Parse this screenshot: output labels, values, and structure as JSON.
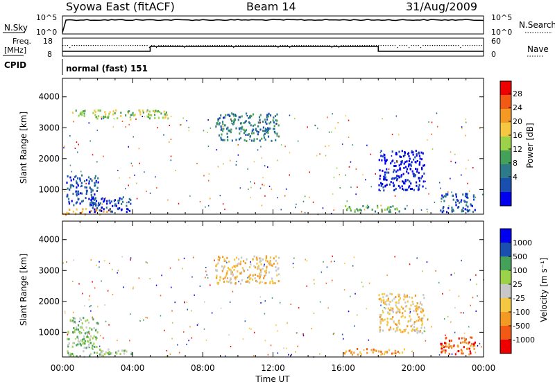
{
  "header": {
    "station": "Syowa East (fitACF)",
    "beam": "Beam 14",
    "date": "31/Aug/2009"
  },
  "summary_panels": {
    "nsky_label": "N.Sky",
    "nsky_ticks": [
      "10^5",
      "10^0"
    ],
    "nsearch_label": "N.Search",
    "nsearch_ticks": [
      "10^5",
      "10^0"
    ],
    "freq_label": "Freq.",
    "freq_unit": "[MHz]",
    "freq_ticks": [
      "18",
      "8"
    ],
    "nave_label": "Nave",
    "nave_ticks": [
      "60",
      "0"
    ],
    "cpid_label": "CPID",
    "cpid_value": "normal (fast) 151"
  },
  "colors": {
    "power": [
      "#0000ee",
      "#1a4fb0",
      "#2f7a8a",
      "#45a05a",
      "#9bd24a",
      "#f4c842",
      "#f49a24",
      "#f05a14",
      "#ee0000"
    ],
    "velocity": [
      "#ee0000",
      "#f05a14",
      "#f49a24",
      "#f4c842",
      "#c8c8c8",
      "#9bd24a",
      "#45a05a",
      "#1a4fb0",
      "#0000ee"
    ]
  },
  "chart_data": [
    {
      "type": "heatmap",
      "title": "",
      "xlabel": "",
      "ylabel": "Slant Range [km]",
      "xlim": [
        "00:00",
        "24:00"
      ],
      "ylim": [
        200,
        4600
      ],
      "xticks": [
        "00:00",
        "04:00",
        "08:00",
        "12:00",
        "16:00",
        "20:00",
        "00:00"
      ],
      "yticks": [
        "1000",
        "2000",
        "3000",
        "4000"
      ],
      "colorbar_label": "Power [dB]",
      "colorbar_ticks": [
        "28",
        "24",
        "20",
        "16",
        "12",
        "8",
        "4"
      ],
      "regions": [
        {
          "t0": 0.0,
          "t1": 2.7,
          "r0": 220,
          "r1": 420,
          "dominant": "28"
        },
        {
          "t0": 0.2,
          "t1": 2.0,
          "r0": 500,
          "r1": 1500,
          "dominant": "8"
        },
        {
          "t0": 1.5,
          "t1": 4.0,
          "r0": 300,
          "r1": 800,
          "dominant": "8"
        },
        {
          "t0": 8.7,
          "t1": 12.3,
          "r0": 2600,
          "r1": 3500,
          "dominant": "12"
        },
        {
          "t0": 18.0,
          "t1": 20.6,
          "r0": 1000,
          "r1": 2300,
          "dominant": "4"
        },
        {
          "t0": 16.0,
          "t1": 19.5,
          "r0": 300,
          "r1": 500,
          "dominant": "16"
        },
        {
          "t0": 21.5,
          "t1": 23.5,
          "r0": 300,
          "r1": 900,
          "dominant": "8"
        },
        {
          "t0": 0.5,
          "t1": 6.0,
          "r0": 3300,
          "r1": 3600,
          "dominant": "20"
        }
      ]
    },
    {
      "type": "heatmap",
      "title": "",
      "xlabel": "Time UT",
      "ylabel": "Slant Range [km]",
      "xlim": [
        "00:00",
        "24:00"
      ],
      "ylim": [
        200,
        4600
      ],
      "xticks": [
        "00:00",
        "04:00",
        "08:00",
        "12:00",
        "16:00",
        "20:00",
        "00:00"
      ],
      "yticks": [
        "1000",
        "2000",
        "3000",
        "4000"
      ],
      "colorbar_label": "Velocity [m s⁻¹]",
      "colorbar_ticks": [
        "1000",
        "500",
        "100",
        "25",
        "-25",
        "-100",
        "-500",
        "-1000"
      ],
      "regions": [
        {
          "t0": 0.0,
          "t1": 2.7,
          "r0": 220,
          "r1": 420,
          "dominant": "-100"
        },
        {
          "t0": 0.2,
          "t1": 2.0,
          "r0": 500,
          "r1": 1500,
          "dominant": "-100"
        },
        {
          "t0": 2.0,
          "t1": 4.0,
          "r0": 300,
          "r1": 500,
          "dominant": "-100"
        },
        {
          "t0": 8.7,
          "t1": 12.3,
          "r0": 2600,
          "r1": 3500,
          "dominant": "25"
        },
        {
          "t0": 18.0,
          "t1": 20.6,
          "r0": 1000,
          "r1": 2300,
          "dominant": "25"
        },
        {
          "t0": 16.0,
          "t1": 19.5,
          "r0": 300,
          "r1": 500,
          "dominant": "100"
        },
        {
          "t0": 21.5,
          "t1": 23.5,
          "r0": 300,
          "r1": 900,
          "dominant": "500"
        }
      ]
    }
  ]
}
